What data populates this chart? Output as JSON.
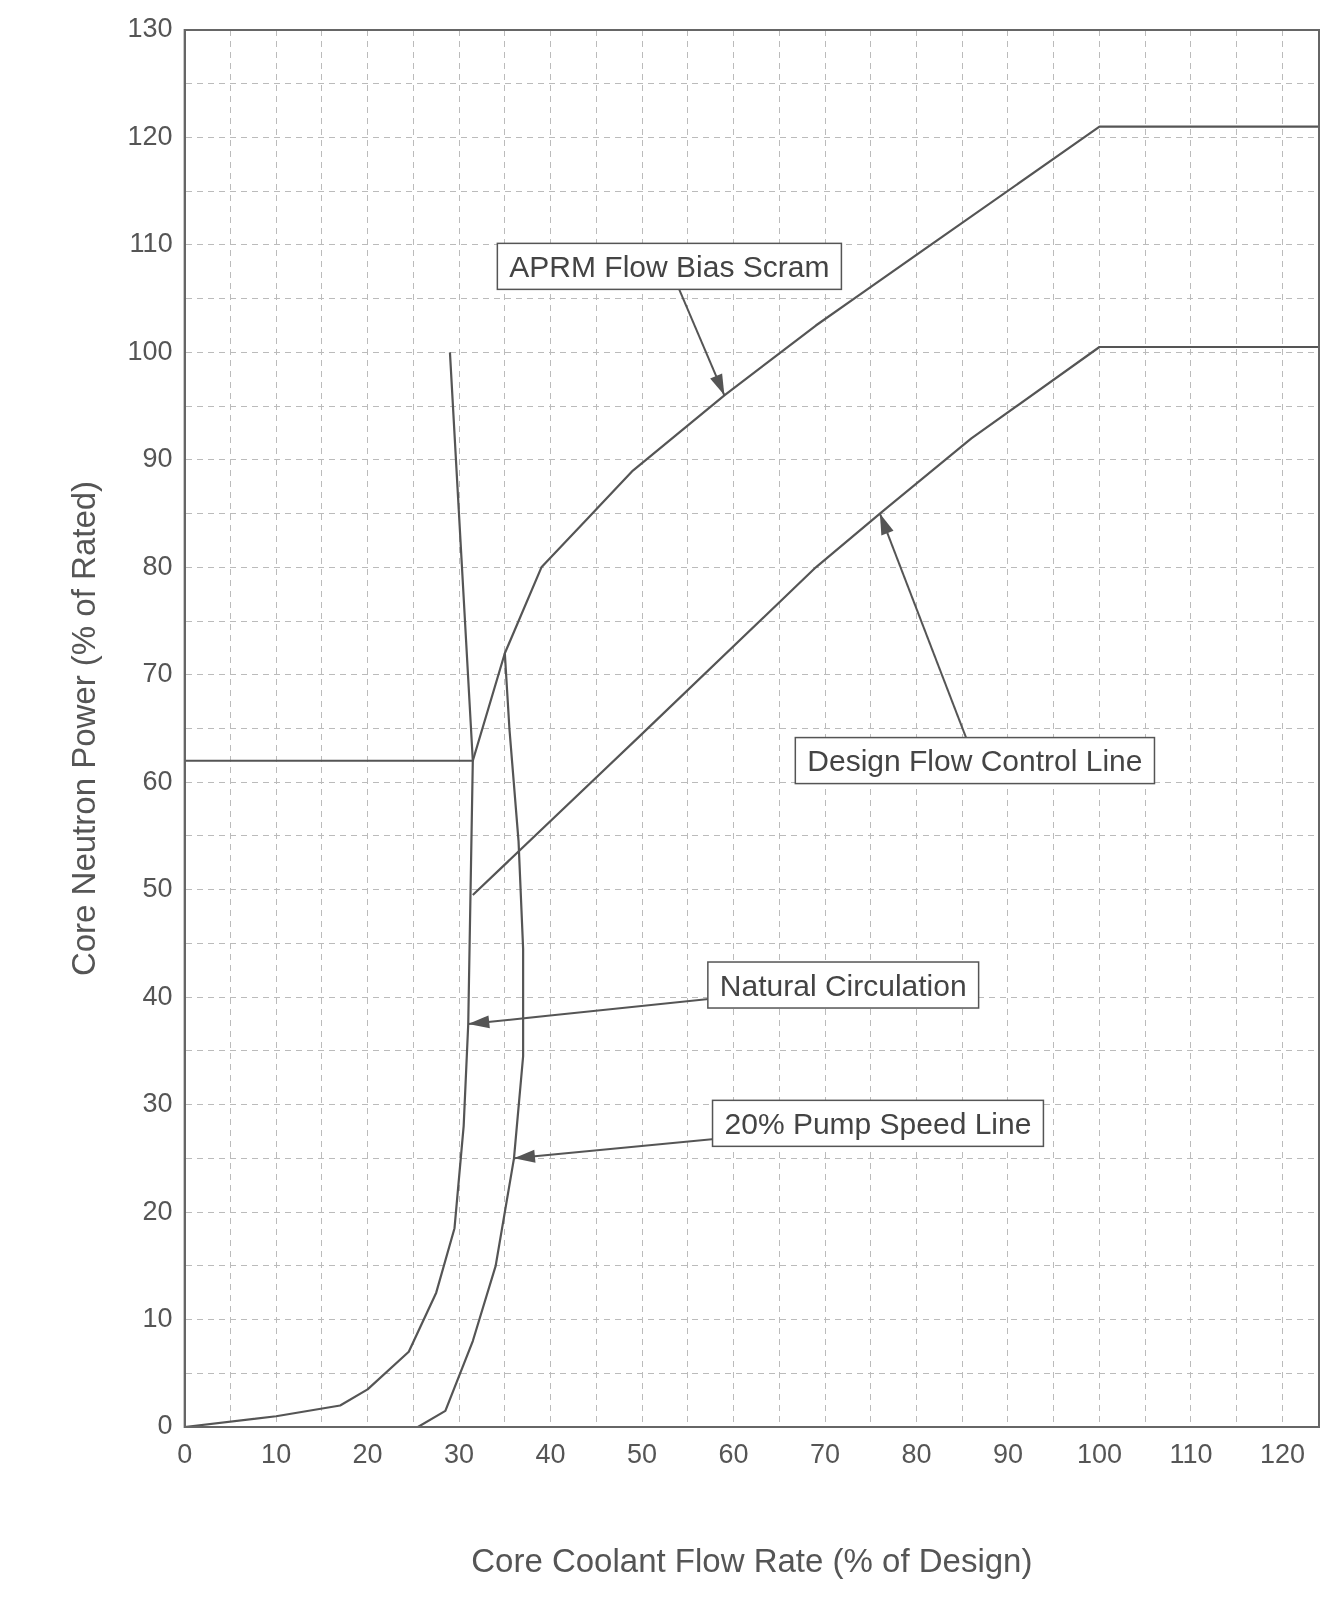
{
  "chart_data": {
    "type": "line",
    "xlabel": "Core Coolant Flow Rate (% of Design)",
    "ylabel": "Core Neutron Power (% of Rated)",
    "xlim": [
      0,
      124
    ],
    "ylim": [
      0,
      130
    ],
    "xticks": [
      0,
      {
        "value": 5,
        "label": null
      },
      10,
      {
        "value": 15,
        "label": null
      },
      20,
      {
        "value": 25,
        "label": null
      },
      30,
      {
        "value": 35,
        "label": null
      },
      40,
      {
        "value": 45,
        "label": null
      },
      50,
      {
        "value": 55,
        "label": null
      },
      60,
      {
        "value": 65,
        "label": null
      },
      70,
      {
        "value": 75,
        "label": null
      },
      80,
      {
        "value": 85,
        "label": null
      },
      90,
      {
        "value": 95,
        "label": null
      },
      100,
      {
        "value": 105,
        "label": null
      },
      110,
      {
        "value": 115,
        "label": null
      },
      120
    ],
    "yticks": [
      0,
      {
        "value": 5,
        "label": null
      },
      10,
      {
        "value": 15,
        "label": null
      },
      20,
      {
        "value": 25,
        "label": null
      },
      30,
      {
        "value": 35,
        "label": null
      },
      40,
      {
        "value": 45,
        "label": null
      },
      50,
      {
        "value": 55,
        "label": null
      },
      60,
      {
        "value": 65,
        "label": null
      },
      70,
      {
        "value": 75,
        "label": null
      },
      80,
      {
        "value": 85,
        "label": null
      },
      90,
      {
        "value": 95,
        "label": null
      },
      100,
      {
        "value": 105,
        "label": null
      },
      110,
      {
        "value": 115,
        "label": null
      },
      120,
      {
        "value": 125,
        "label": null
      },
      130
    ],
    "grid": true,
    "marker": "none",
    "line_style": "solid",
    "series": [
      {
        "color": "#555555",
        "x": [
          0,
          31.5,
          35,
          39,
          44,
          49,
          59,
          69,
          74,
          100,
          124
        ],
        "values": [
          62,
          62,
          72,
          80,
          84.5,
          89,
          96,
          102.5,
          105.5,
          121,
          121
        ]
      },
      {
        "color": "#555555",
        "x": [
          31.5,
          50,
          69,
          76,
          86,
          100,
          124
        ],
        "values": [
          49.5,
          64.5,
          80,
          85,
          92,
          100.5,
          100.5
        ]
      },
      {
        "color": "#555555",
        "x": [
          0,
          10,
          17,
          20,
          24.5,
          27.5,
          29.5,
          30.5,
          31,
          31.5,
          29
        ],
        "values": [
          0,
          1,
          2,
          3.5,
          7,
          12.5,
          18.5,
          28,
          37.5,
          62,
          100
        ]
      },
      {
        "color": "#555555",
        "x": [
          25.5,
          28.5,
          31.5,
          34,
          36,
          37,
          37,
          36.5,
          35.5,
          35
        ],
        "values": [
          0,
          1.5,
          8,
          15,
          25,
          34.5,
          44.5,
          54.5,
          65,
          72
        ]
      }
    ],
    "annotations": [
      {
        "text": "APRM Flow Bias Scram",
        "x": 59,
        "y": 96
      },
      {
        "text": "Design Flow Control Line",
        "x": 76,
        "y": 85
      },
      {
        "text": "Natural Circulation",
        "x": 31,
        "y": 37.5
      },
      {
        "text": "20% Pump Speed Line",
        "x": 36,
        "y": 25
      }
    ]
  }
}
